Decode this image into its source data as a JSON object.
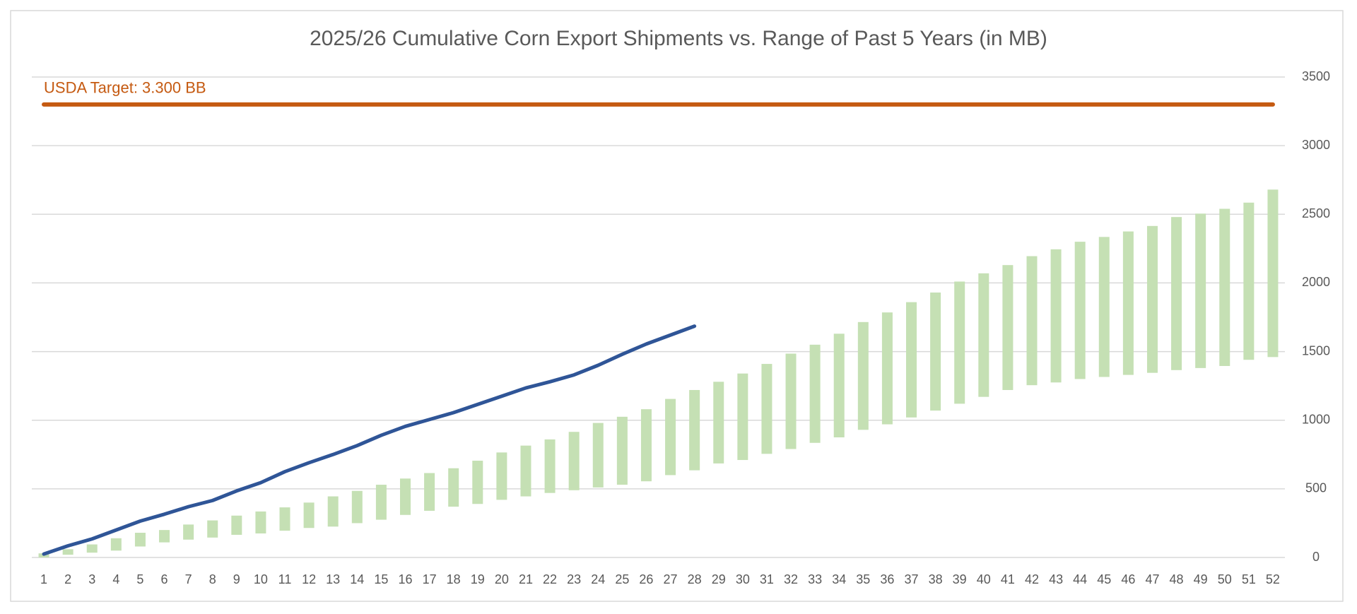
{
  "chart_data": {
    "type": "range-bar-line",
    "title": "2025/26 Cumulative Corn Export Shipments vs. Range of Past 5 Years (in MB)",
    "categories": [
      1,
      2,
      3,
      4,
      5,
      6,
      7,
      8,
      9,
      10,
      11,
      12,
      13,
      14,
      15,
      16,
      17,
      18,
      19,
      20,
      21,
      22,
      23,
      24,
      25,
      26,
      27,
      28,
      29,
      30,
      31,
      32,
      33,
      34,
      35,
      36,
      37,
      38,
      39,
      40,
      41,
      42,
      43,
      44,
      45,
      46,
      47,
      48,
      49,
      50,
      51,
      52
    ],
    "range": {
      "color": "#c5e0b4",
      "low": [
        0,
        20,
        35,
        50,
        80,
        110,
        130,
        145,
        165,
        175,
        195,
        215,
        225,
        250,
        275,
        310,
        340,
        370,
        390,
        420,
        445,
        470,
        490,
        510,
        530,
        555,
        600,
        635,
        685,
        710,
        755,
        790,
        835,
        875,
        930,
        970,
        1020,
        1070,
        1120,
        1170,
        1220,
        1255,
        1275,
        1300,
        1315,
        1330,
        1345,
        1365,
        1380,
        1395,
        1440,
        1460
      ],
      "high": [
        30,
        60,
        95,
        140,
        180,
        200,
        240,
        270,
        305,
        335,
        365,
        400,
        445,
        485,
        530,
        575,
        615,
        650,
        705,
        765,
        815,
        860,
        915,
        980,
        1025,
        1080,
        1155,
        1220,
        1280,
        1340,
        1410,
        1485,
        1550,
        1630,
        1715,
        1785,
        1860,
        1930,
        2010,
        2070,
        2130,
        2195,
        2245,
        2300,
        2335,
        2375,
        2415,
        2480,
        2505,
        2540,
        2585,
        2680
      ]
    },
    "series": [
      {
        "color": "#2f5597",
        "values": [
          25,
          85,
          135,
          200,
          265,
          315,
          370,
          415,
          485,
          545,
          625,
          690,
          750,
          815,
          890,
          955,
          1005,
          1055,
          1115,
          1175,
          1235,
          1280,
          1330,
          1400,
          1480,
          1555,
          1620,
          1685,
          null,
          null,
          null,
          null,
          null,
          null,
          null,
          null,
          null,
          null,
          null,
          null,
          null,
          null,
          null,
          null,
          null,
          null,
          null,
          null,
          null,
          null,
          null,
          null
        ]
      }
    ],
    "target": {
      "label": "USDA Target: 3.300 BB",
      "value": 3300,
      "color": "#c55a11"
    },
    "ylim": [
      0,
      3500
    ],
    "yticks": [
      0,
      500,
      1000,
      1500,
      2000,
      2500,
      3000,
      3500
    ],
    "grid": true,
    "y_axis_side": "right"
  }
}
